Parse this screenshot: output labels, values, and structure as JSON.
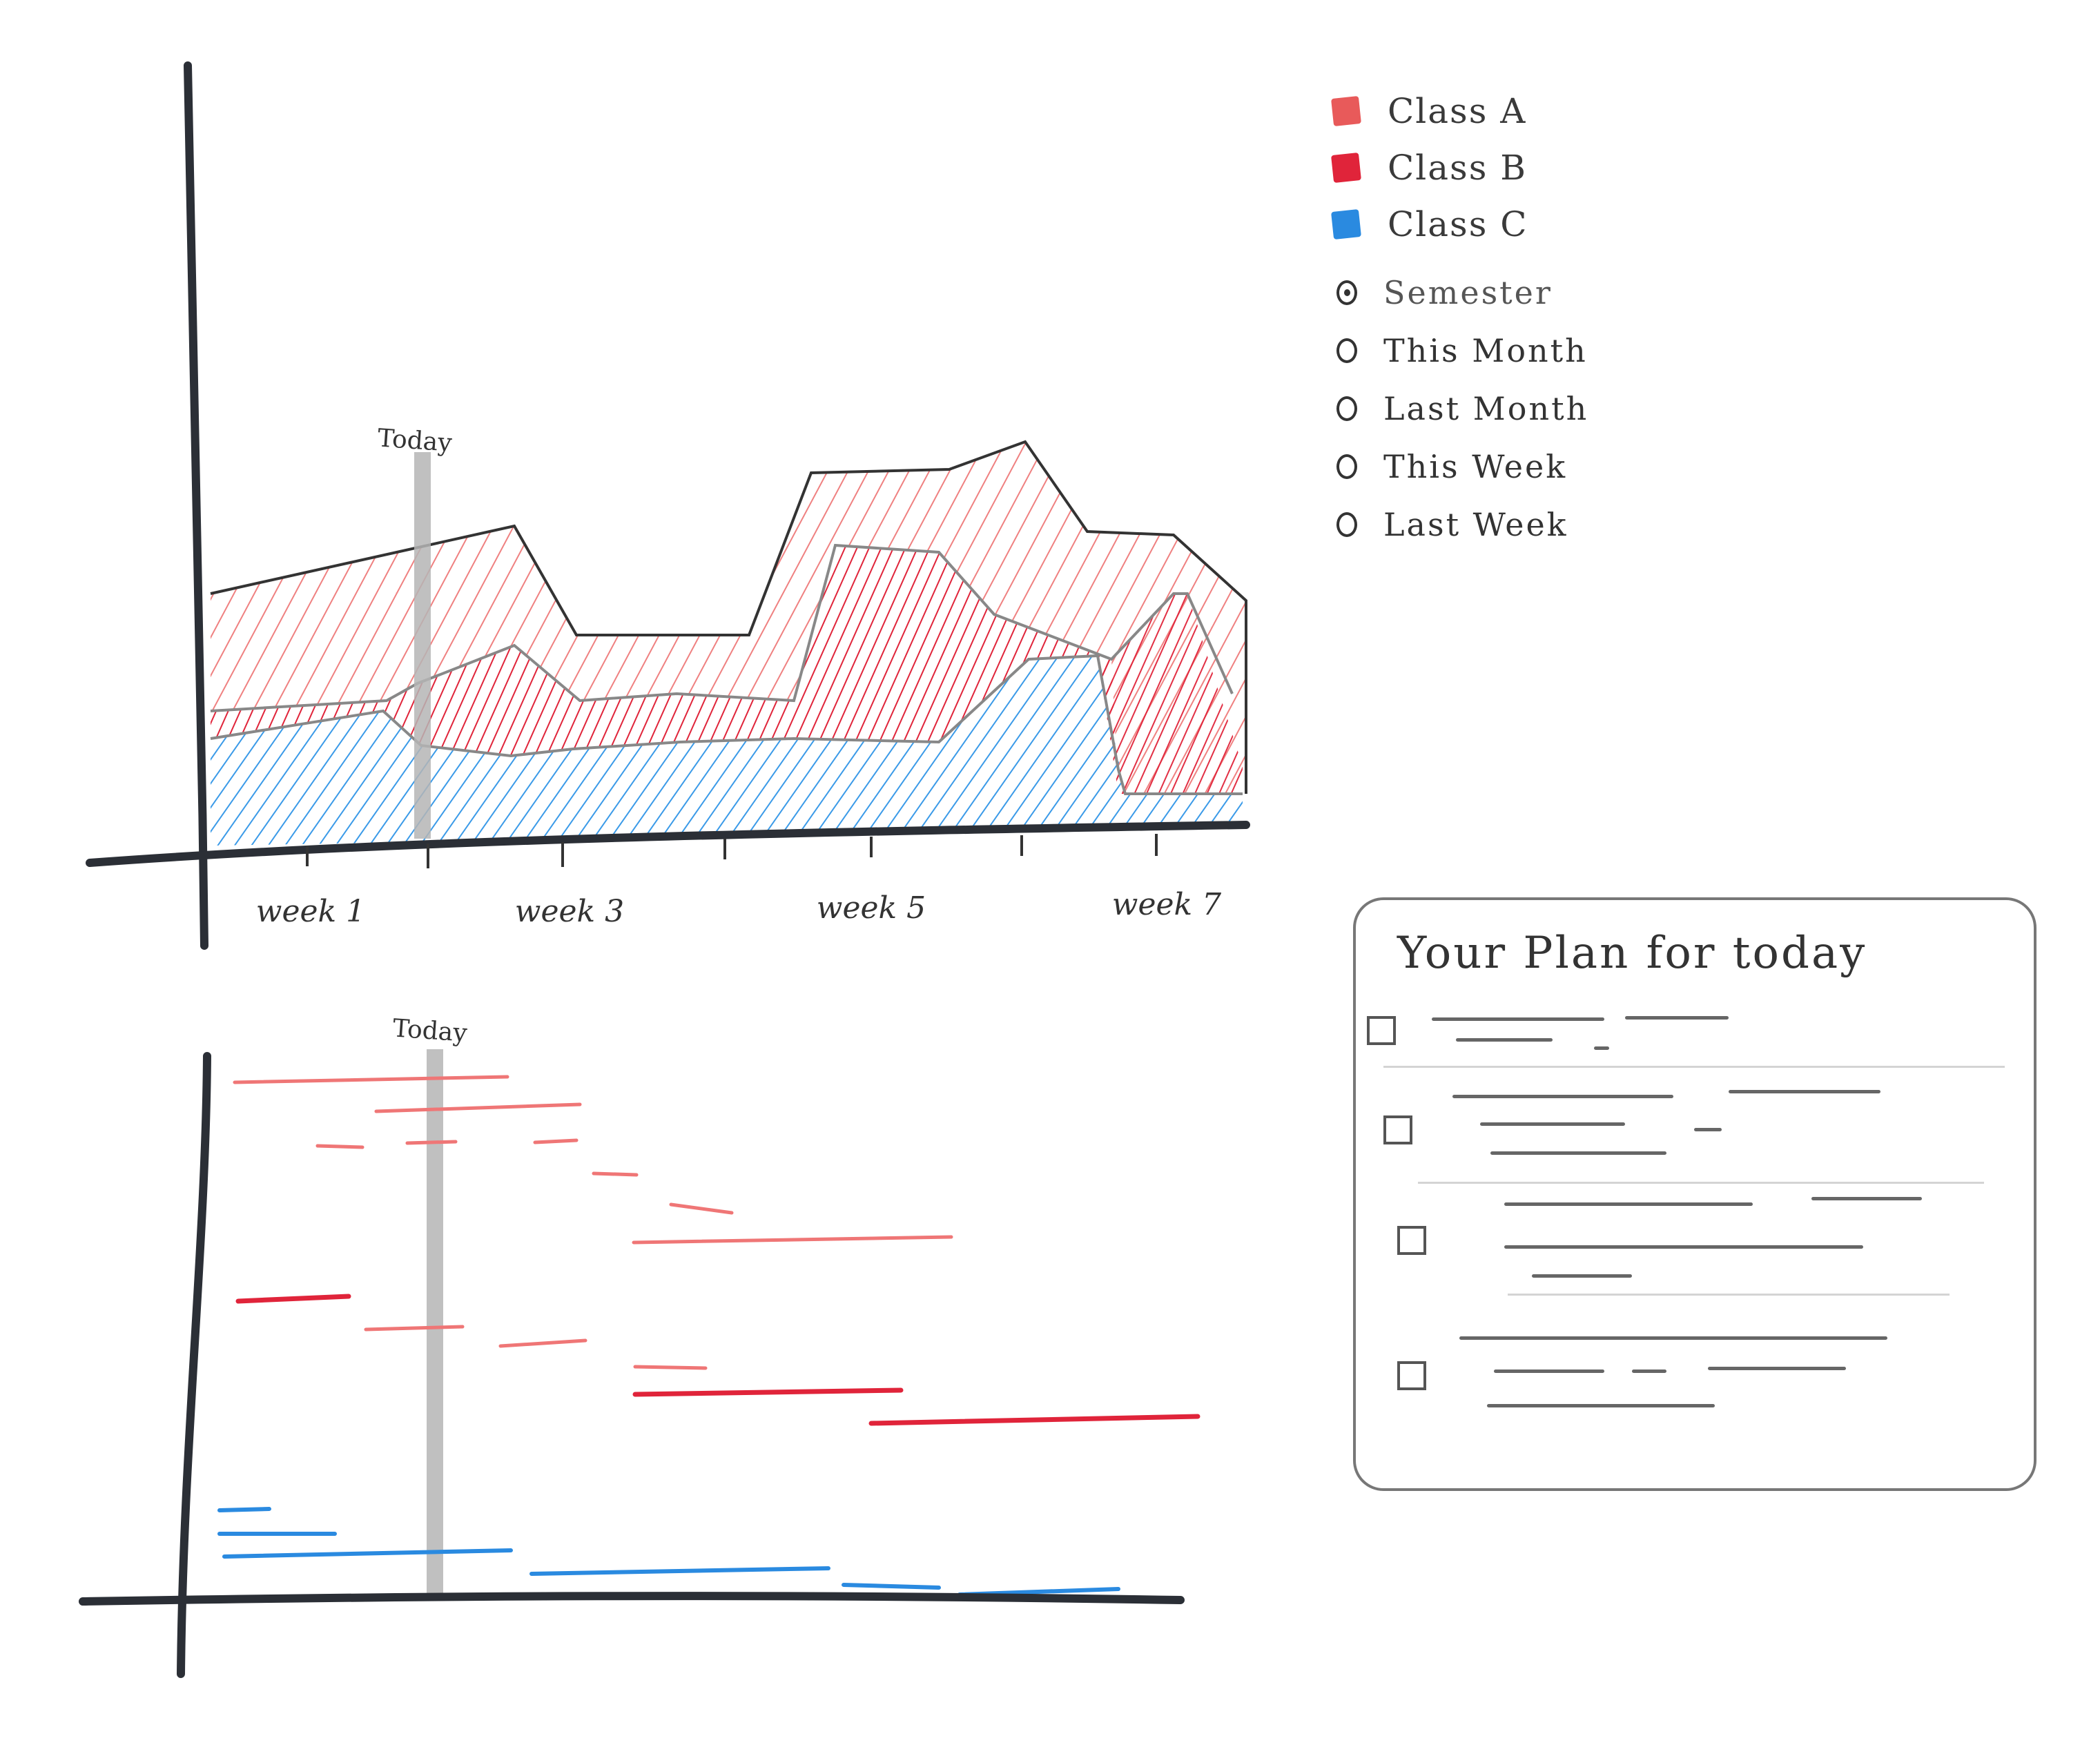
{
  "area_chart": {
    "today_label": "Today",
    "x_labels": [
      "week 1",
      "week 3",
      "week 5",
      "week 7"
    ]
  },
  "timeline": {
    "today_label": "Today"
  },
  "legend": {
    "classes": [
      {
        "label": "Class A",
        "color": "#e85a5a"
      },
      {
        "label": "Class B",
        "color": "#e0243a"
      },
      {
        "label": "Class C",
        "color": "#2a8ae0"
      }
    ],
    "periods": [
      {
        "label": "Semester",
        "selected": true
      },
      {
        "label": "This Month",
        "selected": false
      },
      {
        "label": "Last Month",
        "selected": false
      },
      {
        "label": "This Week",
        "selected": false
      },
      {
        "label": "Last Week",
        "selected": false
      }
    ]
  },
  "plan": {
    "title": "Your Plan for today",
    "task_count": 4
  },
  "colors": {
    "axis": "#2b2f36",
    "class_a": "#ef8080",
    "class_b": "#e0243a",
    "class_c": "#3a9ae8",
    "today_bar": "#b5b5b5"
  }
}
